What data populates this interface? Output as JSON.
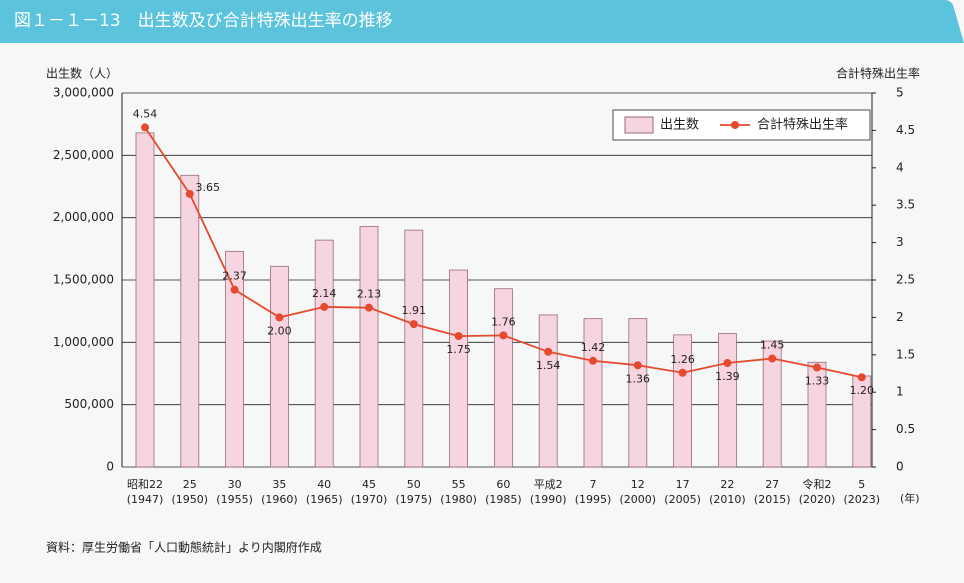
{
  "chart_data": {
    "type": "bar-line",
    "title": "図１－１－13　出生数及び合計特殊出生率の推移",
    "y_label": "出生数（人）",
    "y2_label": "合計特殊出生率",
    "x_unit": "(年)",
    "source": "資料：厚生労働省「人口動態統計」より内閣府作成",
    "categories": [
      [
        "昭和22",
        "(1947)"
      ],
      [
        "25",
        "(1950)"
      ],
      [
        "30",
        "(1955)"
      ],
      [
        "35",
        "(1960)"
      ],
      [
        "40",
        "(1965)"
      ],
      [
        "45",
        "(1970)"
      ],
      [
        "50",
        "(1975)"
      ],
      [
        "55",
        "(1980)"
      ],
      [
        "60",
        "(1985)"
      ],
      [
        "平成2",
        "(1990)"
      ],
      [
        "7",
        "(1995)"
      ],
      [
        "12",
        "(2000)"
      ],
      [
        "17",
        "(2005)"
      ],
      [
        "22",
        "(2010)"
      ],
      [
        "27",
        "(2015)"
      ],
      [
        "令和2",
        "(2020)"
      ],
      [
        "5",
        "(2023)"
      ]
    ],
    "series": [
      {
        "name": "出生数",
        "type": "bar",
        "color": "#f6d4e0",
        "values": [
          2680000,
          2340000,
          1730000,
          1610000,
          1820000,
          1930000,
          1900000,
          1580000,
          1430000,
          1220000,
          1190000,
          1190000,
          1060000,
          1070000,
          1010000,
          840000,
          730000
        ]
      },
      {
        "name": "合計特殊出生率",
        "type": "line",
        "axis": "y2",
        "color": "#e64a2e",
        "values": [
          4.54,
          3.65,
          2.37,
          2.0,
          2.14,
          2.13,
          1.91,
          1.75,
          1.76,
          1.54,
          1.42,
          1.36,
          1.26,
          1.39,
          1.45,
          1.33,
          1.2
        ],
        "value_labels": [
          "4.54",
          "3.65",
          "2.37",
          "2.00",
          "2.14",
          "2.13",
          "1.91",
          "1.75",
          "1.76",
          "1.54",
          "1.42",
          "1.36",
          "1.26",
          "1.39",
          "1.45",
          "1.33",
          "1.20"
        ]
      }
    ],
    "ylim": [
      0,
      3000000
    ],
    "yticks": [
      0,
      {
        "value": 500000,
        "label": "500,000"
      },
      {
        "value": 1000000,
        "label": "1,000,000"
      },
      {
        "value": 1500000,
        "label": "1,500,000"
      },
      {
        "value": 2000000,
        "label": "2,000,000"
      },
      {
        "value": 2500000,
        "label": "2,500,000"
      },
      {
        "value": 3000000,
        "label": "3,000,000"
      }
    ],
    "y2lim": [
      0,
      5
    ],
    "y2ticks": [
      0,
      0.5,
      1,
      1.5,
      2,
      2.5,
      3,
      3.5,
      4,
      4.5,
      5
    ],
    "grid": true,
    "legend": "top-right"
  }
}
